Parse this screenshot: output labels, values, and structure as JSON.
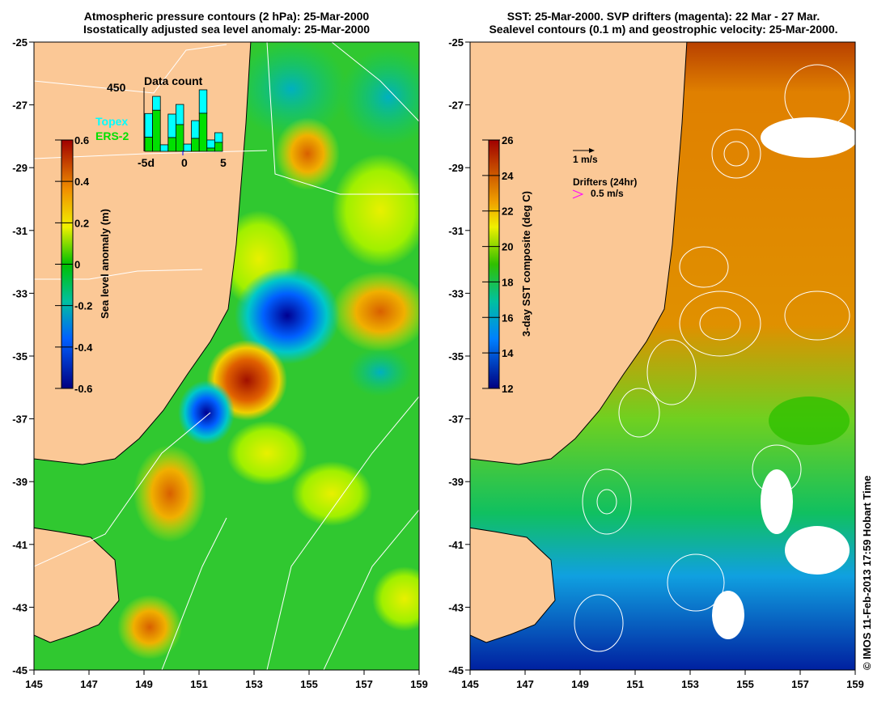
{
  "left_panel": {
    "title_line1": "Atmospheric pressure contours (2 hPa): 25-Mar-2000",
    "title_line2": "Isostatically adjusted sea level anomaly: 25-Mar-2000",
    "colorbar": {
      "label": "Sea level anomaly (m)",
      "ticks": [
        "0.6",
        "0.4",
        "0.2",
        "0",
        "-0.2",
        "-0.4",
        "-0.6"
      ]
    },
    "legend": {
      "topex": "Topex",
      "ers2": "ERS-2",
      "topex_color": "#00ffff",
      "ers2_color": "#00e000"
    },
    "data_count": {
      "title": "Data count",
      "max_label": "450",
      "x_labels": [
        "-5d",
        "0",
        "5"
      ],
      "totals": [
        266,
        387,
        46,
        262,
        330,
        51,
        216,
        433,
        80,
        131
      ],
      "ers2": [
        99,
        289,
        0,
        97,
        188,
        0,
        91,
        268,
        23,
        63
      ]
    }
  },
  "right_panel": {
    "title_line1": "SST: 25-Mar-2000. SVP drifters (magenta): 22 Mar - 27 Mar.",
    "title_line2": "Sealevel contours (0.1 m) and geostrophic velocity: 25-Mar-2000.",
    "colorbar": {
      "label": "3-day SST composite (deg C)",
      "ticks": [
        "26",
        "24",
        "22",
        "20",
        "18",
        "16",
        "14",
        "12"
      ]
    },
    "velocity_scale": "1 m/s",
    "drifters_label": "Drifters (24hr)",
    "drifters_scale": "0.5 m/s"
  },
  "axes": {
    "lat_labels": [
      "-25",
      "-27",
      "-29",
      "-31",
      "-33",
      "-35",
      "-37",
      "-39",
      "-41",
      "-43",
      "-45"
    ],
    "lon_labels": [
      "145",
      "147",
      "149",
      "151",
      "153",
      "155",
      "157",
      "159"
    ]
  },
  "credit": "© IMOS 11-Feb-2013 17:59 Hobart Time",
  "colors": {
    "land": "#fbc896"
  }
}
